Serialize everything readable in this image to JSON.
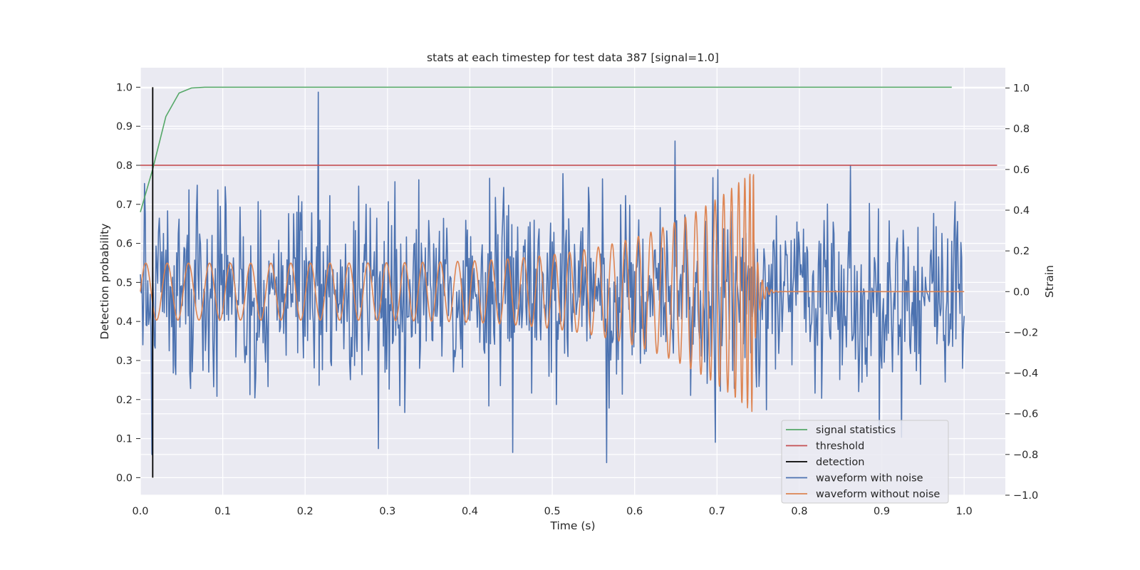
{
  "chart_data": {
    "type": "line",
    "title": "stats at each timestep for test data 387 [signal=1.0]",
    "xlabel": "Time (s)",
    "ylabel_left": "Detection probability",
    "ylabel_right": "Strain",
    "xlim": [
      0.0,
      1.05
    ],
    "ylim_left": [
      -0.045,
      1.05
    ],
    "ylim_right": [
      -1.0,
      1.1
    ],
    "x_ticks": [
      "0.0",
      "0.1",
      "0.2",
      "0.3",
      "0.4",
      "0.5",
      "0.6",
      "0.7",
      "0.8",
      "0.9",
      "1.0"
    ],
    "y_left_ticks": [
      "0.0",
      "0.1",
      "0.2",
      "0.3",
      "0.4",
      "0.5",
      "0.6",
      "0.7",
      "0.8",
      "0.9",
      "1.0"
    ],
    "y_right_ticks": [
      "−1.0",
      "−0.8",
      "−0.6",
      "−0.4",
      "−0.2",
      "0.0",
      "0.2",
      "0.4",
      "0.6",
      "0.8",
      "1.0"
    ],
    "grid": true,
    "legend_position": "lower-right",
    "colors": {
      "signal_statistics": "#55a868",
      "threshold": "#c44e52",
      "detection": "#000000",
      "waveform_with_noise": "#4c72b0",
      "waveform_without_noise": "#dd8452",
      "plot_bg": "#eaeaf2",
      "grid": "#ffffff"
    },
    "series": [
      {
        "name": "signal statistics",
        "axis": "left",
        "x": [
          0.0,
          0.015,
          0.031,
          0.047,
          0.062,
          0.078,
          0.1,
          0.2,
          0.3,
          0.4,
          0.5,
          0.6,
          0.7,
          0.8,
          0.9,
          0.985
        ],
        "y": [
          0.68,
          0.79,
          0.925,
          0.985,
          0.998,
          1.0,
          1.0,
          1.0,
          1.0,
          1.0,
          1.0,
          1.0,
          1.0,
          1.0,
          1.0,
          1.0
        ]
      },
      {
        "name": "threshold",
        "axis": "left",
        "x": [
          0.0,
          1.04
        ],
        "y": [
          0.8,
          0.8
        ]
      },
      {
        "name": "detection",
        "axis": "left",
        "x": [
          0.015,
          0.015
        ],
        "y": [
          0.0,
          1.0
        ]
      },
      {
        "name": "waveform with noise",
        "axis": "right",
        "description_of_generation": "noise",
        "x_range": [
          0.0,
          1.0
        ],
        "approx_std": 0.22,
        "spikes": [
          {
            "x": 0.014,
            "y": -0.8
          },
          {
            "x": 0.216,
            "y": 1.0
          },
          {
            "x": 0.452,
            "y": -0.79
          },
          {
            "x": 0.566,
            "y": -0.84
          },
          {
            "x": 0.649,
            "y": 0.74
          },
          {
            "x": 0.698,
            "y": -0.74
          },
          {
            "x": 0.897,
            "y": -0.7
          },
          {
            "x": 0.862,
            "y": 0.62
          }
        ]
      },
      {
        "name": "waveform without noise",
        "axis": "right",
        "x_range": [
          0.0,
          1.0
        ],
        "merger_time": 0.745,
        "early_amplitude": 0.14,
        "peak_amplitude": 0.6,
        "post_merger_value": 0.0
      }
    ],
    "legend": [
      "signal statistics",
      "threshold",
      "detection",
      "waveform with noise",
      "waveform without noise"
    ]
  }
}
